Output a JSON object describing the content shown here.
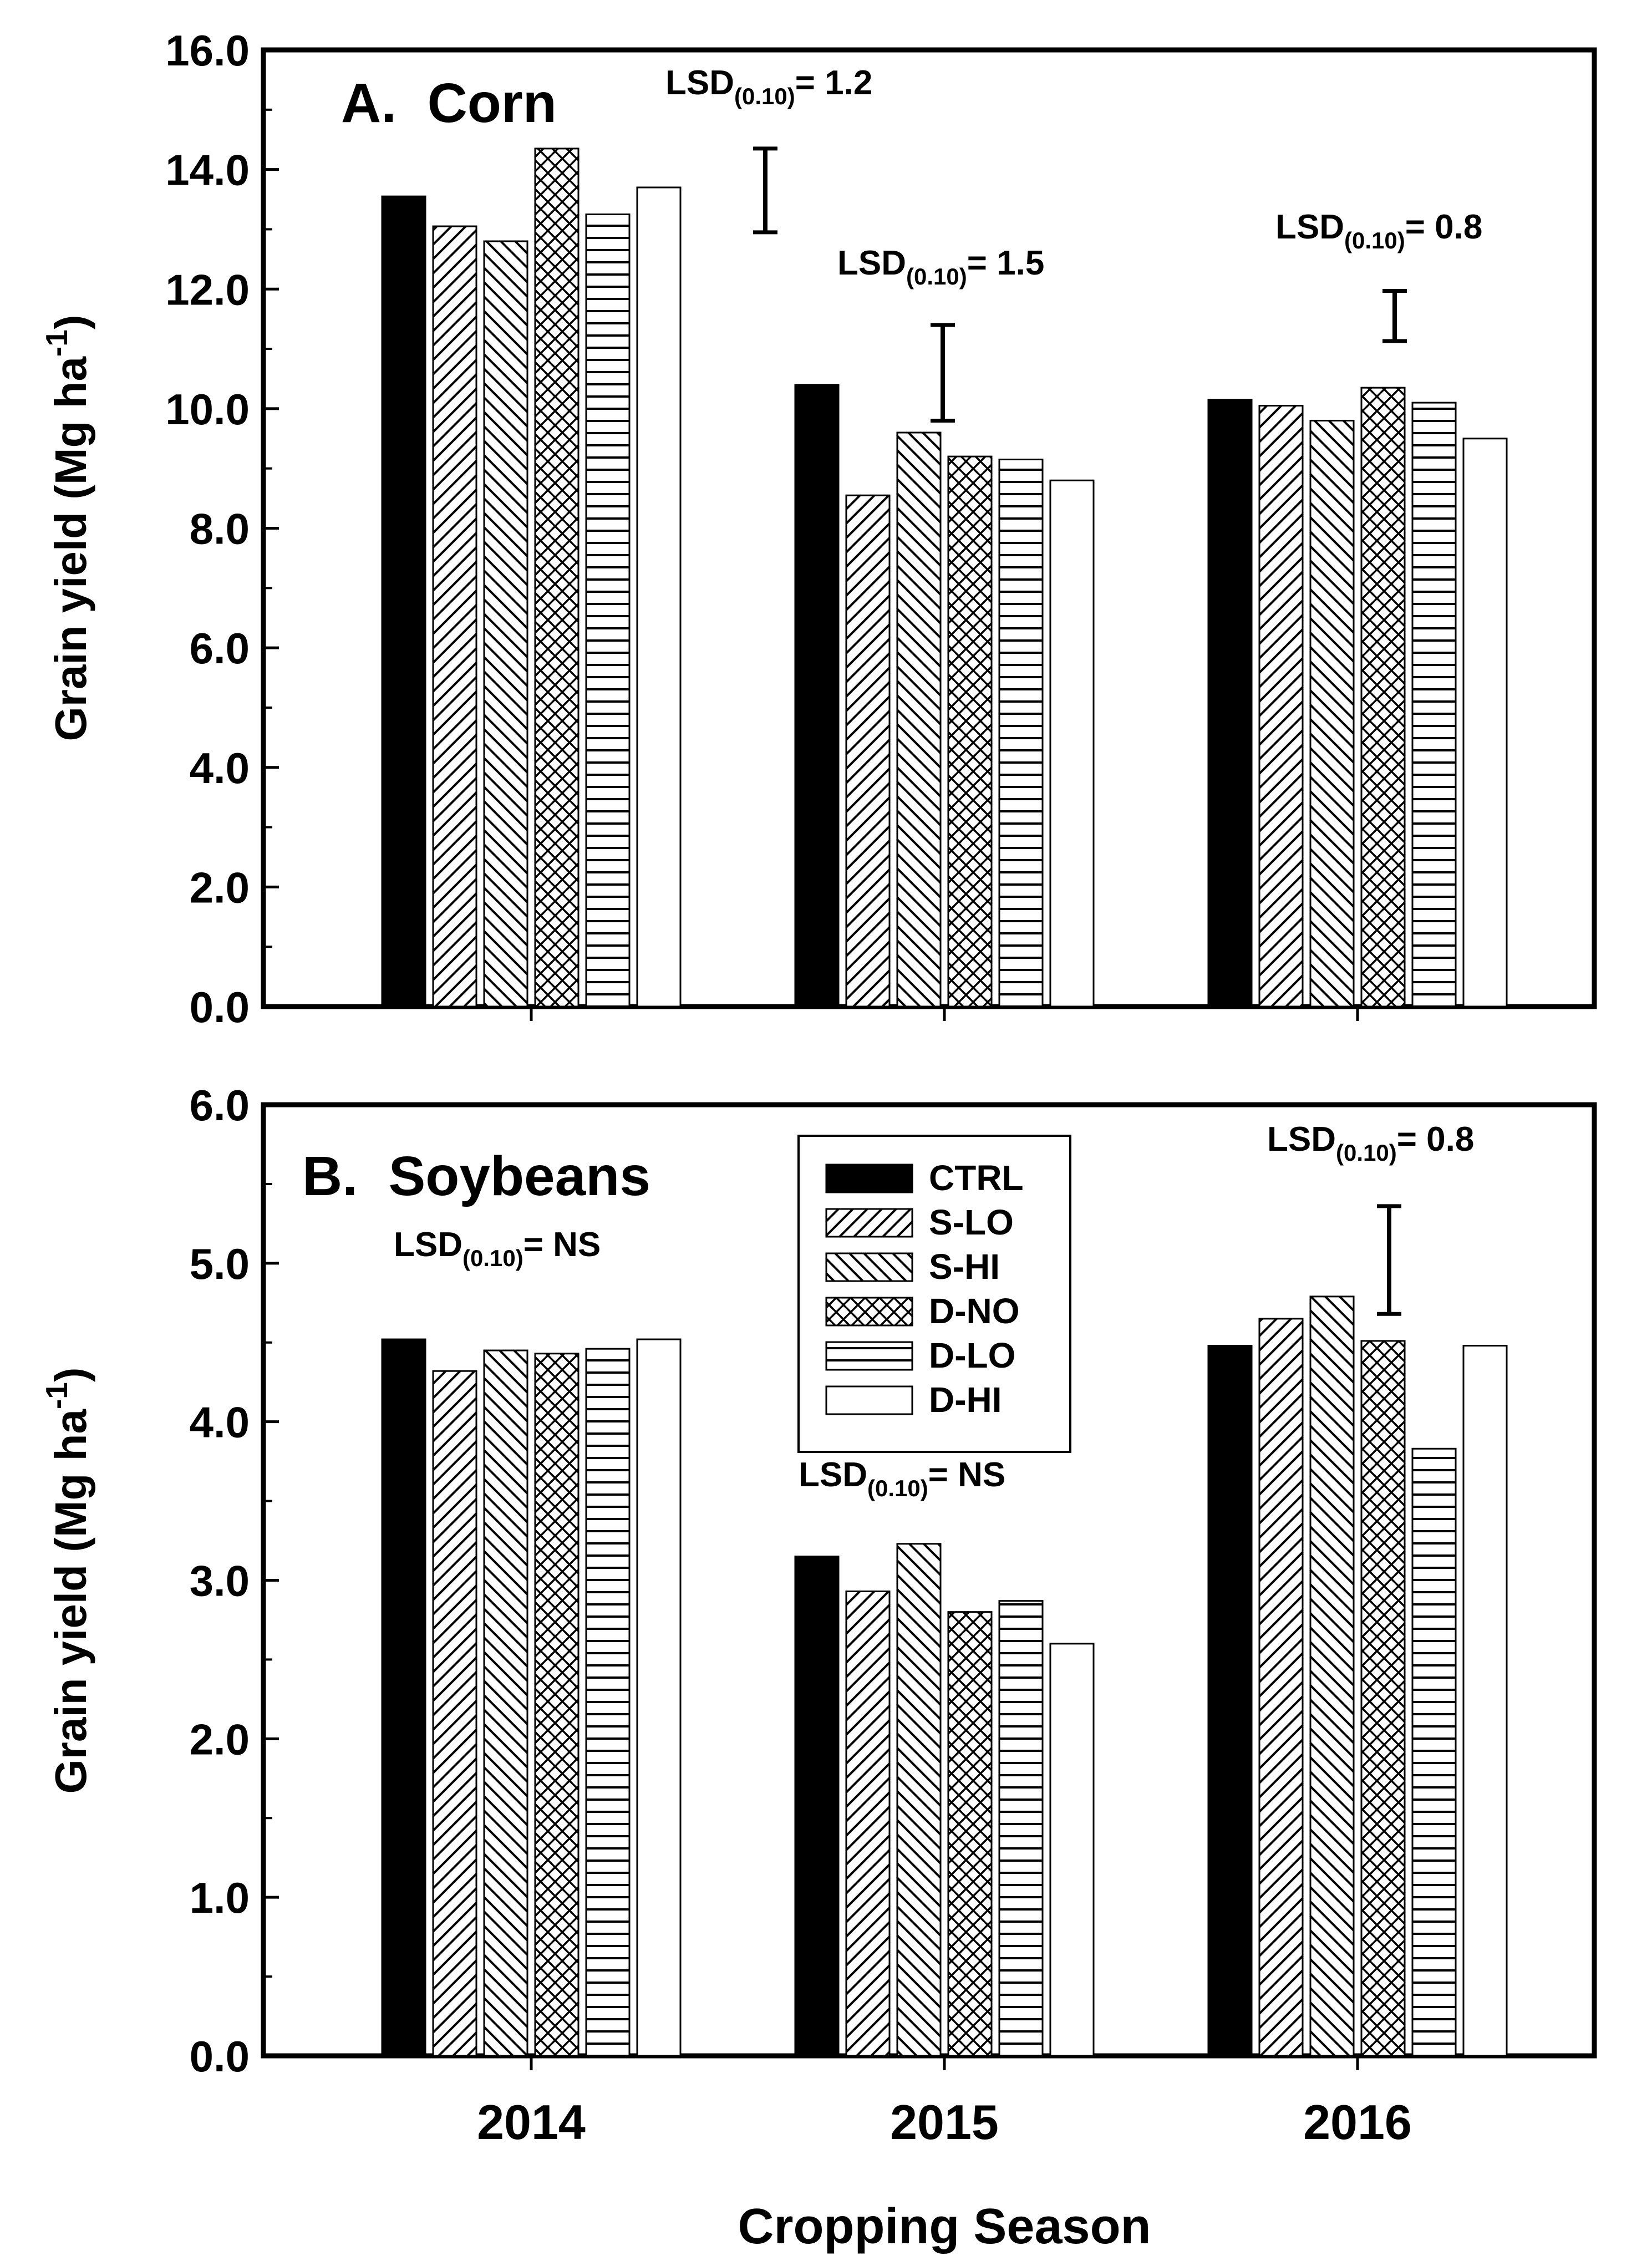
{
  "figure": {
    "x_axis_label": "Cropping Season",
    "y_axis_label_main": "Grain yield (Mg ha",
    "y_axis_label_sup": "-1",
    "y_axis_label_close": ")"
  },
  "legend": {
    "entries": [
      {
        "label": "CTRL",
        "pattern": "solid"
      },
      {
        "label": "S-LO",
        "pattern": "diag-right"
      },
      {
        "label": "S-HI",
        "pattern": "diag-left"
      },
      {
        "label": "D-NO",
        "pattern": "crosshatch"
      },
      {
        "label": "D-LO",
        "pattern": "horizontal"
      },
      {
        "label": "D-HI",
        "pattern": "empty"
      }
    ]
  },
  "chart_data": [
    {
      "type": "bar",
      "title": "A.  Corn",
      "categories": [
        "2014",
        "2015",
        "2016"
      ],
      "xlabel": "Cropping Season",
      "ylabel": "Grain yield (Mg ha-1)",
      "ylim": [
        0,
        16
      ],
      "yticks": [
        "0.0",
        "2.0",
        "4.0",
        "6.0",
        "8.0",
        "10.0",
        "12.0",
        "14.0",
        "16.0"
      ],
      "series": [
        {
          "name": "CTRL",
          "values": [
            13.55,
            10.4,
            10.15
          ]
        },
        {
          "name": "S-LO",
          "values": [
            13.05,
            8.55,
            10.05
          ]
        },
        {
          "name": "S-HI",
          "values": [
            12.8,
            9.6,
            9.8
          ]
        },
        {
          "name": "D-NO",
          "values": [
            14.35,
            9.2,
            10.35
          ]
        },
        {
          "name": "D-LO",
          "values": [
            13.25,
            9.15,
            10.1
          ]
        },
        {
          "name": "D-HI",
          "values": [
            13.7,
            8.8,
            9.5
          ]
        }
      ],
      "lsd_annotations": [
        {
          "label": "LSD",
          "sub": "(0.10)",
          "value": "= 1.2",
          "category": "2014",
          "bar": {
            "center": 13.65,
            "half_width": 0.7
          }
        },
        {
          "label": "LSD",
          "sub": "(0.10)",
          "value": "= 1.5",
          "category": "2015",
          "bar": {
            "center": 10.6,
            "half_width": 0.8
          }
        },
        {
          "label": "LSD",
          "sub": "(0.10)",
          "value": "= 0.8",
          "category": "2016",
          "bar": {
            "center": 11.55,
            "half_width": 0.42
          }
        }
      ]
    },
    {
      "type": "bar",
      "title": "B.  Soybeans",
      "categories": [
        "2014",
        "2015",
        "2016"
      ],
      "xlabel": "Cropping Season",
      "ylabel": "Grain yield (Mg ha-1)",
      "ylim": [
        0,
        6
      ],
      "yticks": [
        "0.0",
        "1.0",
        "2.0",
        "3.0",
        "4.0",
        "5.0",
        "6.0"
      ],
      "series": [
        {
          "name": "CTRL",
          "values": [
            4.52,
            3.15,
            4.48
          ]
        },
        {
          "name": "S-LO",
          "values": [
            4.32,
            2.93,
            4.65
          ]
        },
        {
          "name": "S-HI",
          "values": [
            4.45,
            3.23,
            4.79
          ]
        },
        {
          "name": "D-NO",
          "values": [
            4.43,
            2.8,
            4.51
          ]
        },
        {
          "name": "D-LO",
          "values": [
            4.46,
            2.87,
            3.83
          ]
        },
        {
          "name": "D-HI",
          "values": [
            4.52,
            2.6,
            4.48
          ]
        }
      ],
      "lsd_annotations": [
        {
          "label": "LSD",
          "sub": "(0.10)",
          "value": "= NS",
          "category": "2014",
          "bar": null
        },
        {
          "label": "LSD",
          "sub": "(0.10)",
          "value": "= NS",
          "category": "2015",
          "bar": null
        },
        {
          "label": "LSD",
          "sub": "(0.10)",
          "value": "= 0.8",
          "category": "2016",
          "bar": {
            "center": 5.02,
            "half_width": 0.34
          }
        }
      ]
    }
  ]
}
